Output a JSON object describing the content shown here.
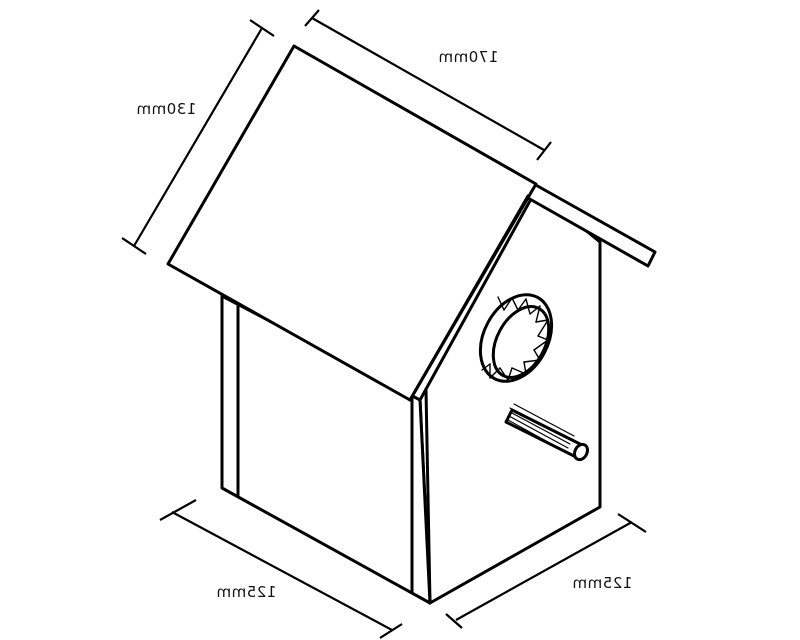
{
  "dimensions": {
    "roof_width": "170mm",
    "roof_depth": "130mm",
    "base_front": "125mm",
    "base_side": "125mm"
  },
  "colors": {
    "line": "#000000",
    "background": "#ffffff"
  }
}
